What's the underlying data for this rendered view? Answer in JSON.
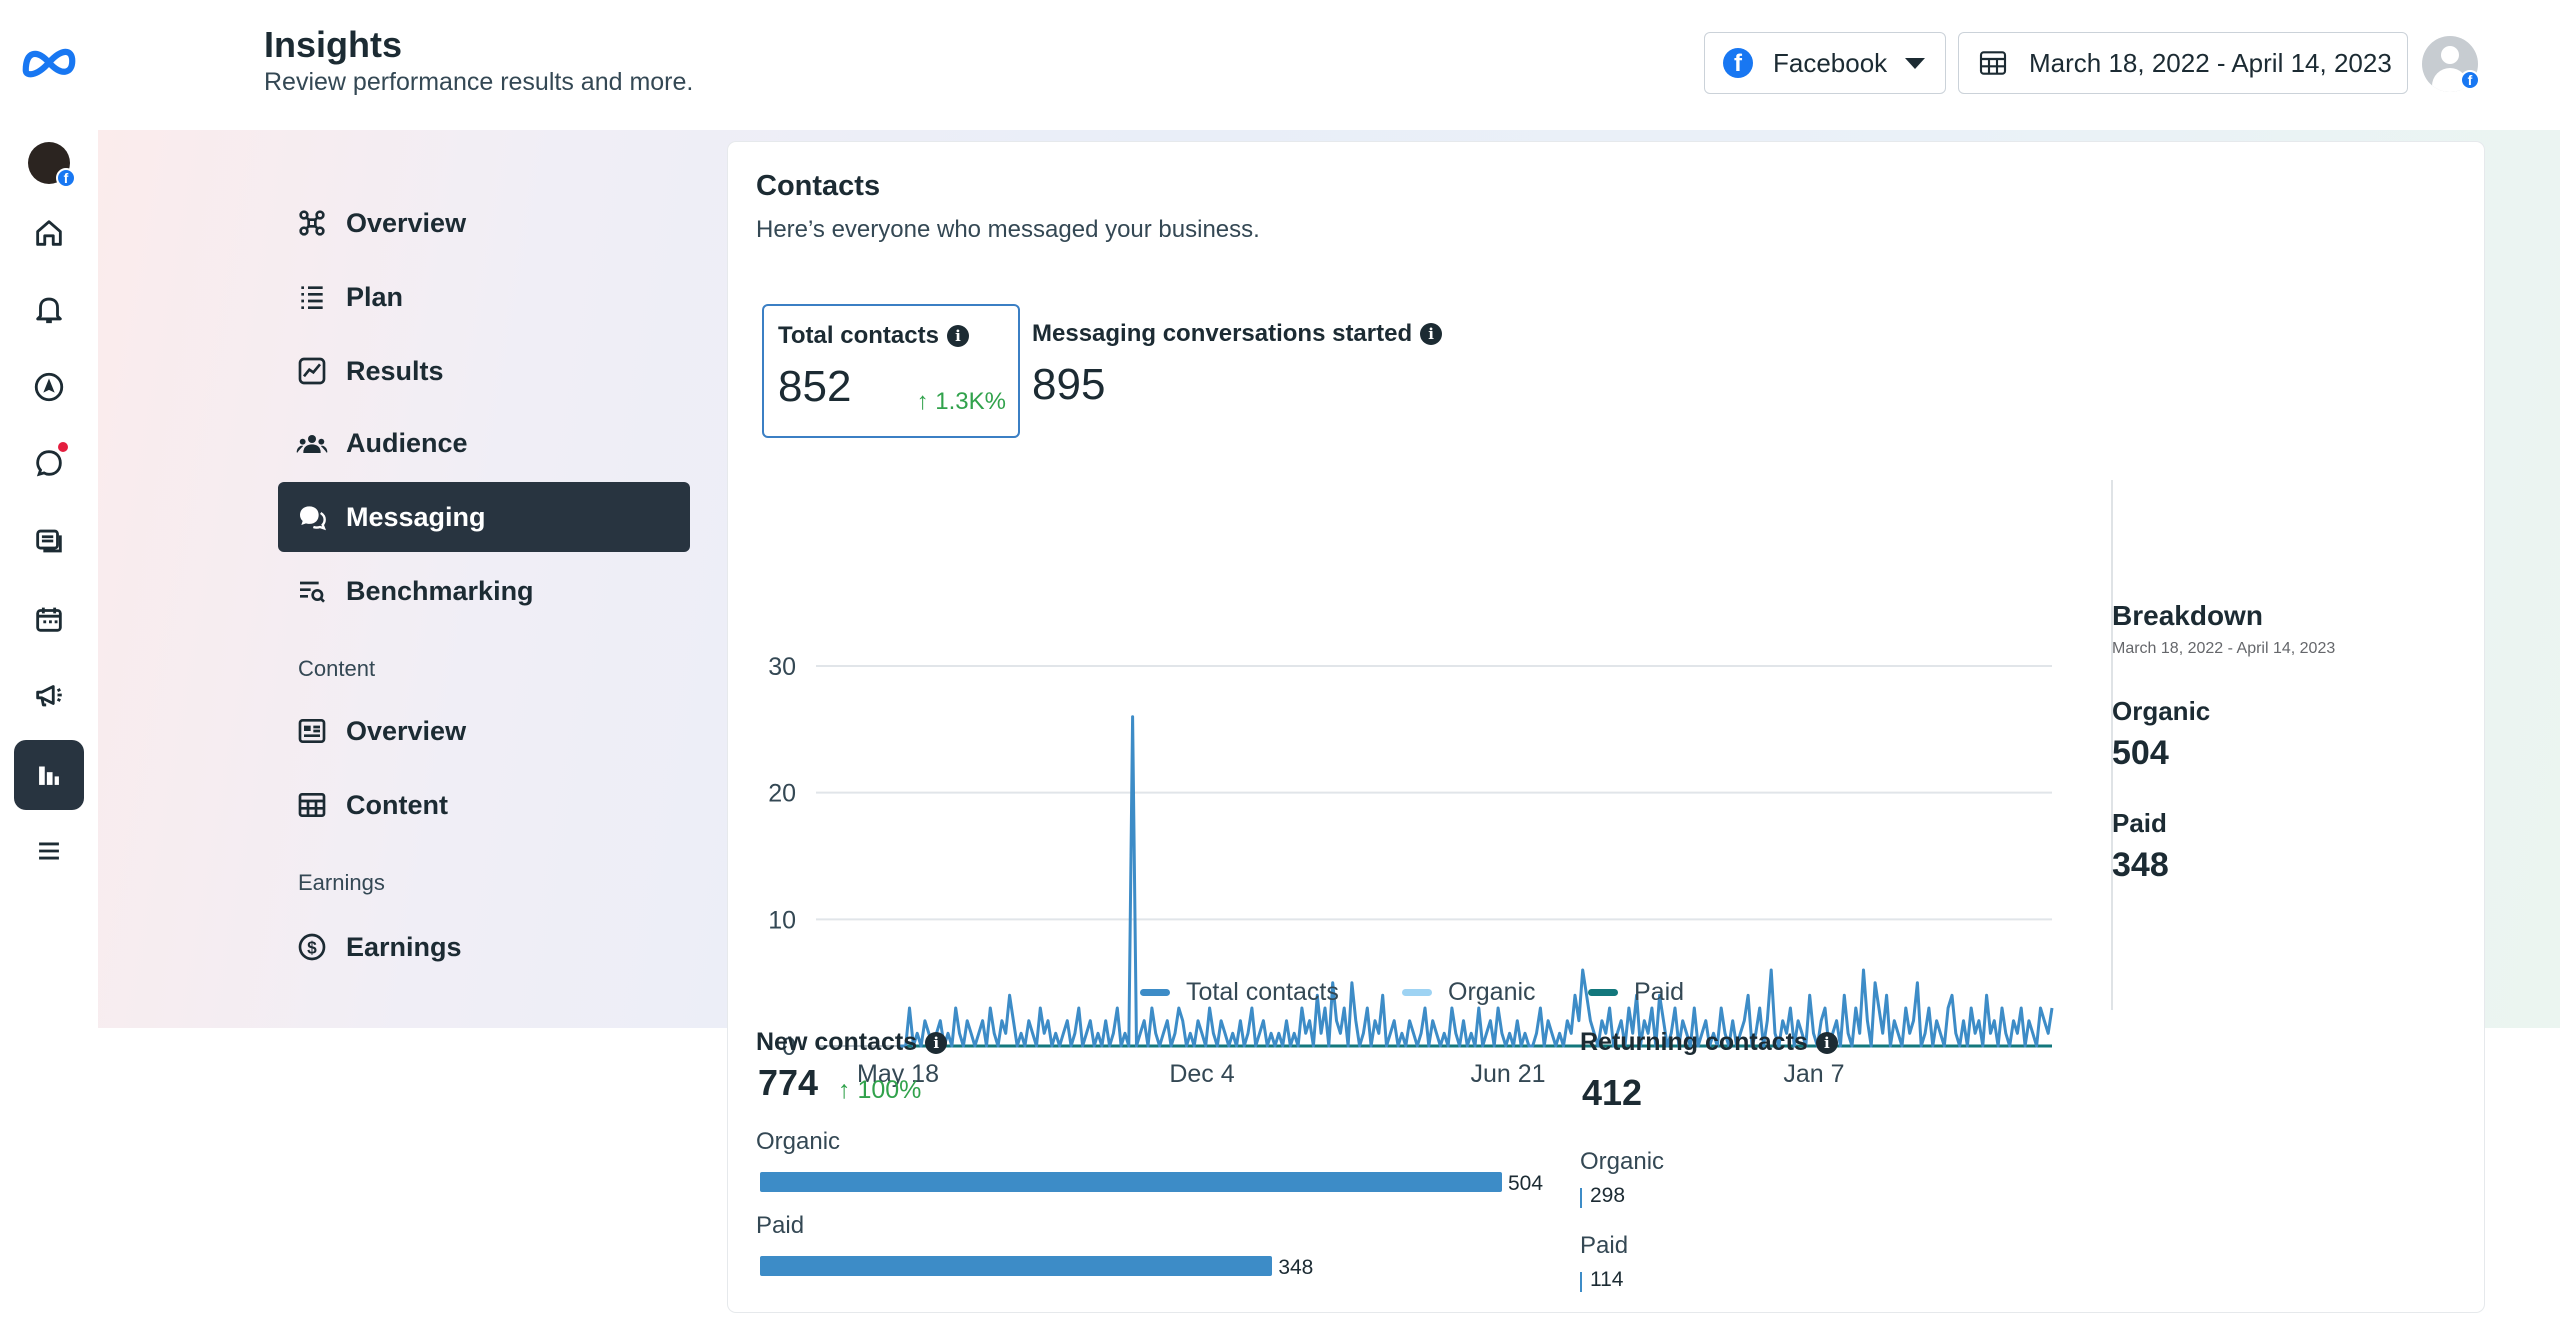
{
  "header": {
    "title": "Insights",
    "subtitle": "Review performance results and more.",
    "platform": "Facebook",
    "date_range": "March 18, 2022 - April 14, 2023"
  },
  "rail": {
    "icons": [
      "meta-logo-icon",
      "page-avatar-icon",
      "home-icon",
      "bell-icon",
      "compass-icon",
      "chat-icon",
      "stack-icon",
      "calendar-icon",
      "megaphone-icon",
      "insights-icon",
      "menu-icon"
    ],
    "active": "insights-icon"
  },
  "nav": {
    "items": [
      {
        "label": "Overview",
        "icon": "overview-icon"
      },
      {
        "label": "Plan",
        "icon": "list-icon"
      },
      {
        "label": "Results",
        "icon": "trend-chart-icon"
      },
      {
        "label": "Audience",
        "icon": "people-icon"
      },
      {
        "label": "Messaging",
        "icon": "message-bubbles-icon",
        "active": true
      },
      {
        "label": "Benchmarking",
        "icon": "benchmark-icon"
      }
    ],
    "content_section": "Content",
    "content_items": [
      {
        "label": "Overview",
        "icon": "content-overview-icon"
      },
      {
        "label": "Content",
        "icon": "table-icon"
      }
    ],
    "earnings_section": "Earnings",
    "earnings_items": [
      {
        "label": "Earnings",
        "icon": "dollar-circle-icon"
      }
    ]
  },
  "contacts": {
    "title": "Contacts",
    "subtitle": "Here’s everyone who messaged your business.",
    "total_label": "Total contacts",
    "total_value": "852",
    "total_change": "↑ 1.3K%",
    "conv_label": "Messaging conversations started",
    "conv_value": "895"
  },
  "breakdown": {
    "title": "Breakdown",
    "date": "March 18, 2022 - April 14, 2023",
    "organic_label": "Organic",
    "organic_value": "504",
    "paid_label": "Paid",
    "paid_value": "348"
  },
  "legend": {
    "total": "Total contacts",
    "organic": "Organic",
    "paid": "Paid"
  },
  "new_contacts": {
    "title": "New contacts",
    "value": "774",
    "change": "↑ 100%",
    "organic_label": "Organic",
    "organic_value": 504,
    "paid_label": "Paid",
    "paid_value": 348
  },
  "returning_contacts": {
    "title": "Returning contacts",
    "value": "412",
    "organic_label": "Organic",
    "organic_value": 298,
    "paid_label": "Paid",
    "paid_value": 114
  },
  "colors": {
    "total": "#3d8cc7",
    "organic": "#9ed3f3",
    "paid": "#12777c",
    "accent_green": "#31a24c",
    "active_nav": "#283440"
  },
  "chart_data": {
    "type": "line",
    "x_ticks": [
      "May 18",
      "Dec 4",
      "Jun 21",
      "Jan 7"
    ],
    "y_ticks": [
      0,
      10,
      20,
      30
    ],
    "ylim": [
      0,
      30
    ],
    "grid": true,
    "legend_position": "bottom",
    "series": [
      {
        "name": "Total contacts",
        "values": [
          0,
          0,
          0,
          3,
          0,
          1,
          0,
          2,
          1,
          0,
          1,
          2,
          0,
          1,
          0,
          3,
          1,
          0,
          2,
          1,
          0,
          1,
          2,
          0,
          3,
          1,
          0,
          2,
          1,
          4,
          2,
          0,
          1,
          0,
          2,
          1,
          0,
          3,
          1,
          2,
          0,
          1,
          0,
          1,
          2,
          0,
          1,
          3,
          0,
          1,
          2,
          0,
          1,
          0,
          2,
          0,
          1,
          3,
          0,
          1,
          0,
          26,
          0,
          1,
          2,
          0,
          3,
          1,
          0,
          1,
          2,
          0,
          1,
          3,
          2,
          0,
          1,
          0,
          2,
          1,
          0,
          3,
          1,
          0,
          2,
          1,
          0,
          1,
          0,
          2,
          0,
          1,
          3,
          0,
          1,
          2,
          0,
          1,
          0,
          1,
          0,
          2,
          0,
          1,
          0,
          3,
          1,
          2,
          0,
          4,
          1,
          3,
          0,
          5,
          2,
          1,
          3,
          0,
          5,
          2,
          0,
          1,
          3,
          0,
          2,
          1,
          4,
          0,
          1,
          2,
          0,
          1,
          0,
          2,
          1,
          0,
          1,
          3,
          0,
          2,
          1,
          0,
          1,
          0,
          3,
          1,
          0,
          2,
          0,
          1,
          0,
          3,
          0,
          1,
          2,
          0,
          3,
          1,
          0,
          1,
          0,
          2,
          0,
          1,
          0,
          0,
          1,
          3,
          0,
          2,
          1,
          0,
          1,
          0,
          2,
          1,
          4,
          2,
          6,
          4,
          2,
          1,
          0,
          2,
          1,
          3,
          0,
          1,
          2,
          0,
          3,
          1,
          4,
          0,
          2,
          1,
          3,
          0,
          4,
          2,
          0,
          1,
          3,
          0,
          2,
          1,
          0,
          3,
          0,
          1,
          2,
          0,
          1,
          0,
          3,
          1,
          0,
          2,
          0,
          1,
          2,
          4,
          0,
          1,
          3,
          0,
          2,
          6,
          1,
          0,
          2,
          1,
          3,
          0,
          2,
          1,
          0,
          4,
          1,
          0,
          2,
          3,
          0,
          1,
          2,
          0,
          4,
          1,
          0,
          3,
          1,
          6,
          2,
          0,
          5,
          3,
          1,
          4,
          0,
          2,
          1,
          0,
          3,
          1,
          2,
          5,
          0,
          1,
          3,
          0,
          2,
          1,
          0,
          3,
          4,
          1,
          0,
          2,
          0,
          3,
          1,
          2,
          0,
          4,
          1,
          2,
          0,
          3,
          1,
          0,
          2,
          1,
          3,
          0,
          2,
          1,
          0,
          3,
          2,
          1,
          3
        ]
      },
      {
        "name": "Organic",
        "values": []
      },
      {
        "name": "Paid",
        "values": []
      }
    ]
  }
}
